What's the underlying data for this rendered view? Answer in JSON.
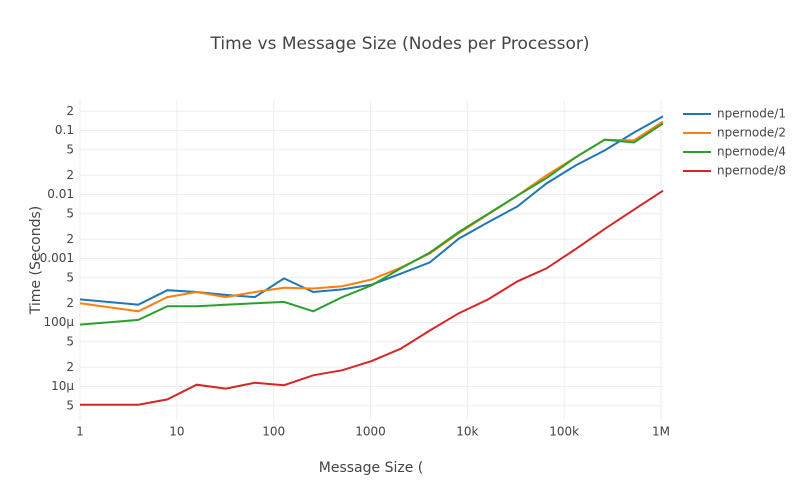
{
  "chart_data": {
    "type": "line",
    "title": "Time vs Message Size (Nodes per Processor)",
    "x_label": "Message Size (",
    "y_label": "Time (Seconds)",
    "x": [
      1,
      4,
      8,
      16,
      32,
      64,
      128,
      256,
      512,
      1024,
      2048,
      4096,
      8192,
      16384,
      32768,
      65536,
      131072,
      262144,
      524288,
      1048576
    ],
    "series": [
      {
        "name": "npernode/1",
        "color": "#1f77b4",
        "values": [
          0.00023,
          0.00019,
          0.00032,
          0.0003,
          0.00027,
          0.00025,
          0.00049,
          0.0003,
          0.00033,
          0.00039,
          0.00058,
          0.00087,
          0.00205,
          0.0037,
          0.0065,
          0.0149,
          0.0284,
          0.049,
          0.093,
          0.166
        ]
      },
      {
        "name": "npernode/2",
        "color": "#ff7f0e",
        "values": [
          0.0002,
          0.00015,
          0.00025,
          0.0003,
          0.00025,
          0.0003,
          0.00035,
          0.00034,
          0.00037,
          0.00047,
          0.00072,
          0.0012,
          0.0025,
          0.0049,
          0.0096,
          0.0198,
          0.038,
          0.072,
          0.07,
          0.138
        ]
      },
      {
        "name": "npernode/4",
        "color": "#2ca02c",
        "values": [
          9.3e-05,
          0.00011,
          0.00018,
          0.00018,
          0.00019,
          0.0002,
          0.00021,
          0.00015,
          0.00025,
          0.00038,
          0.0007,
          0.00124,
          0.0026,
          0.005,
          0.0096,
          0.018,
          0.038,
          0.072,
          0.065,
          0.129
        ]
      },
      {
        "name": "npernode/8",
        "color": "#d62728",
        "values": [
          5.2e-06,
          5.2e-06,
          6.3e-06,
          1.07e-05,
          9.3e-06,
          1.15e-05,
          1.05e-05,
          1.5e-05,
          1.8e-05,
          2.5e-05,
          3.9e-05,
          7.5e-05,
          0.00014,
          0.00023,
          0.00044,
          0.0007,
          0.0014,
          0.0029,
          0.0058,
          0.0115
        ]
      }
    ],
    "xlim": [
      1,
      1048576
    ],
    "ylim": [
      3e-06,
      0.3
    ],
    "log_x": true,
    "log_y": true,
    "grid": true,
    "legend": "right",
    "xticks": [
      1,
      10,
      100,
      1000,
      {
        "value": 10000,
        "label": "10k"
      },
      {
        "value": 100000,
        "label": "100k"
      },
      {
        "value": 1000000,
        "label": "1M"
      }
    ],
    "yticks": [
      {
        "value": 0.2,
        "label": "2"
      },
      0.1,
      {
        "value": 0.05,
        "label": "5"
      },
      {
        "value": 0.02,
        "label": "2"
      },
      0.01,
      {
        "value": 0.005,
        "label": "5"
      },
      {
        "value": 0.002,
        "label": "2"
      },
      0.001,
      {
        "value": 0.0005,
        "label": "5"
      },
      {
        "value": 0.0002,
        "label": "2"
      },
      {
        "value": 0.0001,
        "label": "100μ"
      },
      {
        "value": 5e-05,
        "label": "5"
      },
      {
        "value": 2e-05,
        "label": "2"
      },
      {
        "value": 1e-05,
        "label": "10μ"
      },
      {
        "value": 5e-06,
        "label": "5"
      }
    ]
  }
}
